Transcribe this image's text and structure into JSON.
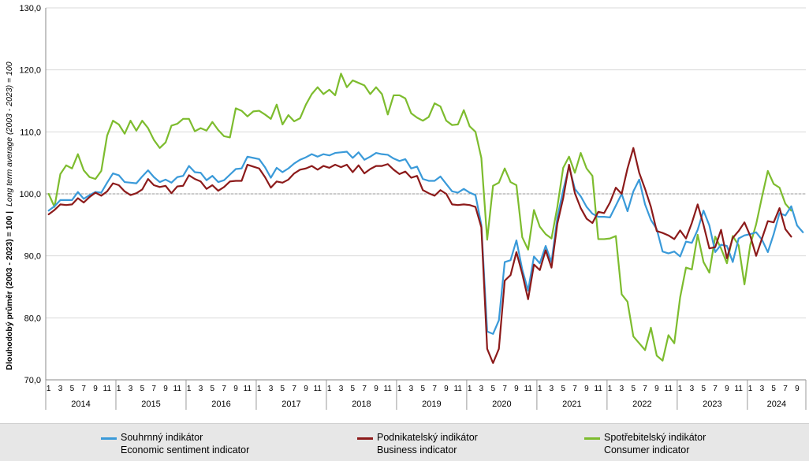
{
  "chart_data": {
    "type": "line",
    "ylabel_bold": "Dlouhodobý průměr (2003 - 2023) = 100 |",
    "ylabel_italic": "Long term average (2003 - 2023) = 100",
    "ylim": [
      70,
      130
    ],
    "y_ticks": [
      "70,0",
      "80,0",
      "90,0",
      "100,0",
      "110,0",
      "120,0",
      "130,0"
    ],
    "reference_line": 100,
    "x_start": "2014-01",
    "years": [
      "2014",
      "2015",
      "2016",
      "2017",
      "2018",
      "2019",
      "2020",
      "2021",
      "2022",
      "2023",
      "2024"
    ],
    "month_tick_labels": [
      "1",
      "3",
      "5",
      "7",
      "9",
      "11"
    ],
    "series": [
      {
        "name": "Souhrnný indikátor",
        "name_en": "Economic sentiment indicator",
        "color": "#3a9ad9",
        "values": [
          97.3,
          98.0,
          99.0,
          99.0,
          99.0,
          100.3,
          99.2,
          99.8,
          100.3,
          100.2,
          101.8,
          103.3,
          103.0,
          101.9,
          101.8,
          101.7,
          102.8,
          103.8,
          102.7,
          101.9,
          102.3,
          101.8,
          102.7,
          102.9,
          104.5,
          103.5,
          103.4,
          102.2,
          102.9,
          101.9,
          102.2,
          103.1,
          104.0,
          104.1,
          106.0,
          105.8,
          105.6,
          104.3,
          102.6,
          104.2,
          103.5,
          104.1,
          104.9,
          105.5,
          105.9,
          106.4,
          106.0,
          106.4,
          106.2,
          106.6,
          106.7,
          106.8,
          105.8,
          106.7,
          105.5,
          106.0,
          106.6,
          106.4,
          106.3,
          105.7,
          105.3,
          105.6,
          104.1,
          104.4,
          102.4,
          102.1,
          102.1,
          102.8,
          101.6,
          100.4,
          100.2,
          100.8,
          100.2,
          99.8,
          95.0,
          77.8,
          77.4,
          79.6,
          89.0,
          89.3,
          92.5,
          87.8,
          84.4,
          89.9,
          88.8,
          91.6,
          89.0,
          96.2,
          100.6,
          104.4,
          100.8,
          99.6,
          97.9,
          96.8,
          96.3,
          96.3,
          96.2,
          98.1,
          100.0,
          97.2,
          100.4,
          102.3,
          98.3,
          95.8,
          94.3,
          90.7,
          90.4,
          90.7,
          89.9,
          92.3,
          92.1,
          94.2,
          97.3,
          94.9,
          90.6,
          91.8,
          91.6,
          89.0,
          92.8,
          93.3,
          93.5,
          93.8,
          92.6,
          90.6,
          93.5,
          96.9,
          96.5,
          98.0,
          94.9,
          93.8
        ]
      },
      {
        "name": "Podnikatelský indikátor",
        "name_en": "Business indicator",
        "color": "#8c1a1a",
        "values": [
          96.7,
          97.4,
          98.3,
          98.2,
          98.3,
          99.3,
          98.6,
          99.5,
          100.2,
          99.7,
          100.4,
          101.7,
          101.4,
          100.4,
          99.8,
          100.1,
          100.7,
          102.4,
          101.4,
          101.1,
          101.3,
          100.1,
          101.2,
          101.3,
          103.0,
          102.4,
          102.0,
          100.8,
          101.4,
          100.5,
          101.1,
          102.0,
          102.1,
          102.1,
          104.7,
          104.4,
          104.1,
          102.7,
          101.0,
          102.0,
          101.8,
          102.3,
          103.3,
          103.9,
          104.1,
          104.5,
          103.9,
          104.5,
          104.2,
          104.7,
          104.3,
          104.7,
          103.5,
          104.6,
          103.3,
          104.0,
          104.5,
          104.5,
          104.8,
          103.9,
          103.2,
          103.6,
          102.6,
          102.9,
          100.6,
          100.1,
          99.7,
          100.6,
          100.0,
          98.3,
          98.2,
          98.3,
          98.2,
          97.9,
          94.6,
          75.0,
          72.7,
          75.0,
          86.0,
          86.9,
          90.6,
          87.1,
          83.0,
          88.6,
          87.7,
          90.9,
          88.1,
          95.2,
          99.3,
          104.7,
          100.1,
          97.7,
          96.0,
          95.3,
          97.1,
          96.9,
          98.6,
          101.0,
          100.0,
          104.1,
          107.4,
          103.4,
          100.8,
          97.9,
          94.0,
          93.7,
          93.3,
          92.7,
          94.1,
          92.8,
          95.3,
          98.3,
          95.0,
          91.2,
          91.4,
          94.2,
          89.6,
          92.9,
          94.0,
          95.4,
          93.2,
          90.0,
          92.8,
          95.6,
          95.4,
          97.7,
          94.3,
          93.1
        ]
      },
      {
        "name": "Spotřebitelský indikátor",
        "name_en": "Consumer indicator",
        "color": "#7dbc2e",
        "values": [
          100.0,
          97.9,
          103.2,
          104.6,
          104.1,
          106.4,
          103.8,
          102.7,
          102.4,
          103.7,
          109.4,
          111.8,
          111.2,
          109.7,
          111.8,
          110.2,
          111.8,
          110.6,
          108.7,
          107.4,
          108.3,
          111.0,
          111.3,
          112.1,
          112.1,
          110.1,
          110.6,
          110.2,
          111.6,
          110.3,
          109.3,
          109.1,
          113.8,
          113.4,
          112.5,
          113.3,
          113.4,
          112.8,
          112.1,
          114.4,
          111.2,
          112.7,
          111.7,
          112.2,
          114.4,
          116.1,
          117.2,
          116.1,
          116.8,
          115.9,
          119.4,
          117.2,
          118.3,
          117.9,
          117.5,
          116.1,
          117.2,
          116.1,
          112.8,
          115.9,
          115.9,
          115.4,
          113.0,
          112.3,
          111.8,
          112.4,
          114.6,
          114.1,
          111.8,
          111.1,
          111.2,
          113.5,
          110.9,
          110.0,
          105.8,
          92.6,
          101.3,
          101.8,
          104.1,
          101.9,
          101.4,
          93.0,
          91.0,
          97.4,
          94.7,
          93.5,
          92.8,
          97.9,
          104.2,
          106.0,
          103.4,
          106.6,
          104.1,
          102.9,
          92.7,
          92.7,
          92.8,
          93.2,
          83.8,
          82.6,
          77.0,
          75.9,
          74.8,
          78.4,
          73.9,
          73.1,
          77.2,
          75.9,
          83.3,
          88.1,
          87.8,
          93.4,
          89.0,
          87.3,
          93.1,
          91.2,
          88.8,
          93.2,
          91.7,
          85.4,
          91.8,
          95.1,
          99.5,
          103.7,
          101.6,
          101.0,
          98.4,
          97.3
        ]
      }
    ]
  }
}
